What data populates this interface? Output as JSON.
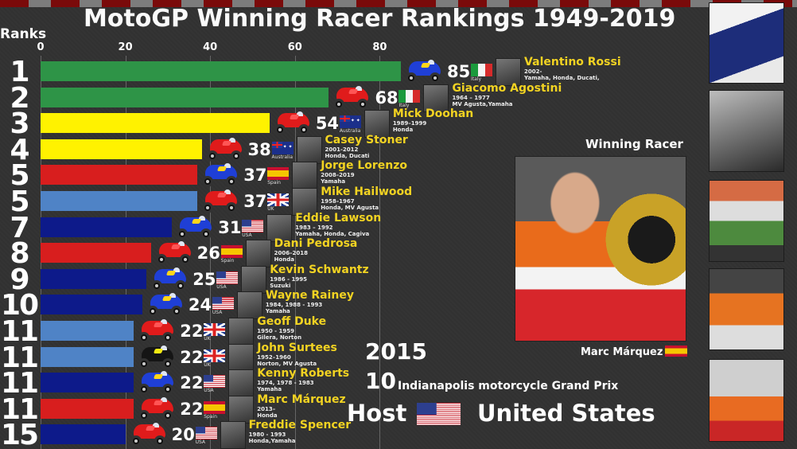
{
  "header": {
    "title": "MotoGP Winning Racer Rankings 1949-2019",
    "ranks_label": "Ranks"
  },
  "colors": {
    "background": "#323232",
    "checker_red": "#7a0a0a",
    "checker_gray": "#7c7c7c",
    "name_yellow": "#f2d322",
    "bar_green": "#2e9447",
    "bar_yellow": "#fff200",
    "bar_red": "#d81e1e",
    "bar_lightblue": "#4f83c6",
    "bar_navy": "#0d1a8a"
  },
  "axis": {
    "ticks": [
      "0",
      "20",
      "40",
      "60",
      "80"
    ]
  },
  "chart_data": {
    "type": "bar",
    "orientation": "horizontal",
    "title": "MotoGP Winning Racer Rankings 1949-2019",
    "xlabel": "",
    "ylabel": "Ranks",
    "xlim": [
      0,
      88
    ],
    "x_ticks": [
      0,
      20,
      40,
      60,
      80
    ],
    "grid": true,
    "categories": [
      "Valentino Rossi",
      "Giacomo Agostini",
      "Mick Doohan",
      "Casey Stoner",
      "Jorge Lorenzo",
      "Mike Hailwood",
      "Eddie Lawson",
      "Dani Pedrosa",
      "Kevin Schwantz",
      "Wayne Rainey",
      "Geoff Duke",
      "John Surtees",
      "Kenny Roberts",
      "Marc Márquez",
      "Freddie Spencer"
    ],
    "values": [
      85,
      68,
      54,
      38,
      37,
      37,
      31,
      26,
      25,
      24,
      22,
      22,
      22,
      22,
      20
    ],
    "ranks": [
      1,
      2,
      3,
      4,
      5,
      5,
      7,
      8,
      9,
      10,
      11,
      11,
      11,
      11,
      15
    ],
    "annotations": {
      "year": "2015",
      "round": "10",
      "grand_prix": "Indianapolis motorcycle Grand Prix",
      "host": "United States",
      "winning_racer": "Marc Márquez"
    }
  },
  "rows": [
    {
      "rank": "1",
      "value": "85",
      "name": "Valentino Rossi",
      "years": "2002-",
      "teams": "Yamaha, Honda, Ducati,",
      "country": "Italy",
      "flag": "it",
      "bar_color": "#2e9447",
      "moto": "blue"
    },
    {
      "rank": "2",
      "value": "68",
      "name": "Giacomo Agostini",
      "years": "1964 – 1977",
      "teams": "MV Agusta,Yamaha",
      "country": "Italy",
      "flag": "it",
      "bar_color": "#2e9447",
      "moto": "red"
    },
    {
      "rank": "3",
      "value": "54",
      "name": "Mick Doohan",
      "years": "1989–1999",
      "teams": "Honda",
      "country": "Australia",
      "flag": "au",
      "bar_color": "#fff200",
      "moto": "red"
    },
    {
      "rank": "4",
      "value": "38",
      "name": "Casey Stoner",
      "years": "2001-2012",
      "teams": "Honda, Ducati",
      "country": "Australia",
      "flag": "au",
      "bar_color": "#fff200",
      "moto": "red"
    },
    {
      "rank": "5",
      "value": "37",
      "name": "Jorge Lorenzo",
      "years": "2008–2019",
      "teams": "Yamaha",
      "country": "Spain",
      "flag": "es",
      "bar_color": "#d81e1e",
      "moto": "blue"
    },
    {
      "rank": "5",
      "value": "37",
      "name": "Mike Hailwood",
      "years": "1958–1967",
      "teams": "Honda, MV Agusta",
      "country": "UK",
      "flag": "uk",
      "bar_color": "#4f83c6",
      "moto": "red"
    },
    {
      "rank": "7",
      "value": "31",
      "name": "Eddie Lawson",
      "years": "1983 – 1992",
      "teams": "Yamaha, Honda, Cagiva",
      "country": "USA",
      "flag": "us",
      "bar_color": "#0d1a8a",
      "moto": "blue"
    },
    {
      "rank": "8",
      "value": "26",
      "name": "Dani Pedrosa",
      "years": "2006–2018",
      "teams": "Honda",
      "country": "Spain",
      "flag": "es",
      "bar_color": "#d81e1e",
      "moto": "red"
    },
    {
      "rank": "9",
      "value": "25",
      "name": "Kevin Schwantz",
      "years": "1986 - 1995",
      "teams": "Suzuki",
      "country": "USA",
      "flag": "us",
      "bar_color": "#0d1a8a",
      "moto": "blue"
    },
    {
      "rank": "10",
      "value": "24",
      "name": "Wayne Rainey",
      "years": "1984, 1988 - 1993",
      "teams": "Yamaha",
      "country": "USA",
      "flag": "us",
      "bar_color": "#0d1a8a",
      "moto": "blue"
    },
    {
      "rank": "11",
      "value": "22",
      "name": "Geoff Duke",
      "years": "1950 - 1959",
      "teams": "Gilera, Norton",
      "country": "UK",
      "flag": "uk",
      "bar_color": "#4f83c6",
      "moto": "red"
    },
    {
      "rank": "11",
      "value": "22",
      "name": "John Surtees",
      "years": "1952–1960",
      "teams": "Norton, MV Agusta",
      "country": "UK",
      "flag": "uk",
      "bar_color": "#4f83c6",
      "moto": "black"
    },
    {
      "rank": "11",
      "value": "22",
      "name": "Kenny Roberts",
      "years": "1974, 1978 - 1983",
      "teams": "Yamaha",
      "country": "USA",
      "flag": "us",
      "bar_color": "#0d1a8a",
      "moto": "blue"
    },
    {
      "rank": "11",
      "value": "22",
      "name": "Marc Márquez",
      "years": "2013–",
      "teams": "Honda",
      "country": "Spain",
      "flag": "es",
      "bar_color": "#d81e1e",
      "moto": "red"
    },
    {
      "rank": "15",
      "value": "20",
      "name": "Freddie Spencer",
      "years": "1980 - 1993",
      "teams": "Honda,Yamaha",
      "country": "USA",
      "flag": "us",
      "bar_color": "#0d1a8a",
      "moto": "red"
    }
  ],
  "winning_panel": {
    "label": "Winning Racer",
    "name": "Marc Márquez",
    "flag": "es"
  },
  "event": {
    "year": "2015",
    "round": "10",
    "grand_prix": "Indianapolis motorcycle Grand Prix",
    "host_label": "Host",
    "host_country": "United States",
    "host_flag": "us"
  },
  "side_photos": [
    {
      "racer": "Valentino Rossi"
    },
    {
      "racer": "Giacomo Agostini"
    },
    {
      "racer": "Casey Stoner"
    },
    {
      "racer": "Dani Pedrosa"
    },
    {
      "racer": "Jorge Lorenzo"
    }
  ]
}
